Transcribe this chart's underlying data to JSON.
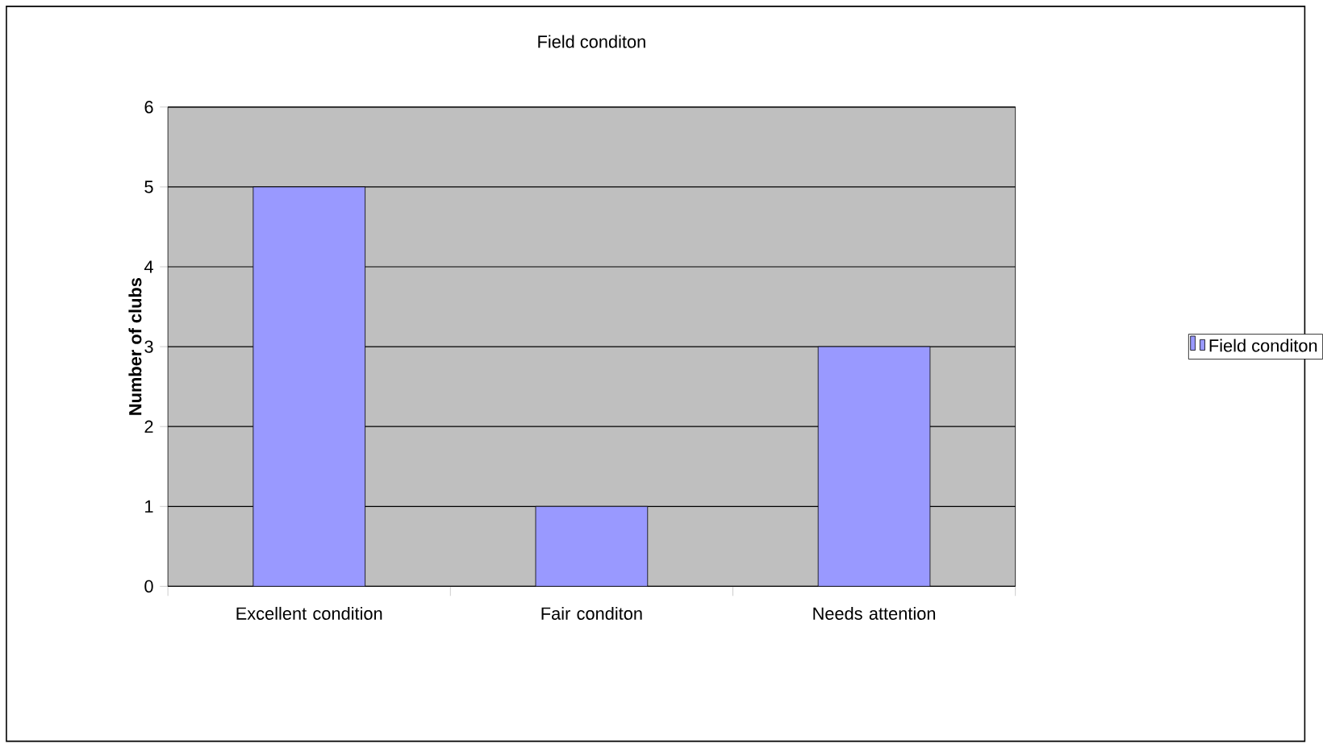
{
  "chart_data": {
    "type": "bar",
    "title": "Field conditon",
    "ylabel": "Number of clubs",
    "categories": [
      "Excellent condition",
      "Fair conditon",
      "Needs attention"
    ],
    "series": [
      {
        "name": "Field conditon",
        "color": "#9999ff",
        "values": [
          5,
          1,
          3
        ]
      }
    ],
    "ylim": [
      0,
      6
    ],
    "yticks": [
      0,
      1,
      2,
      3,
      4,
      5,
      6
    ],
    "grid": "y",
    "legend": "right"
  }
}
